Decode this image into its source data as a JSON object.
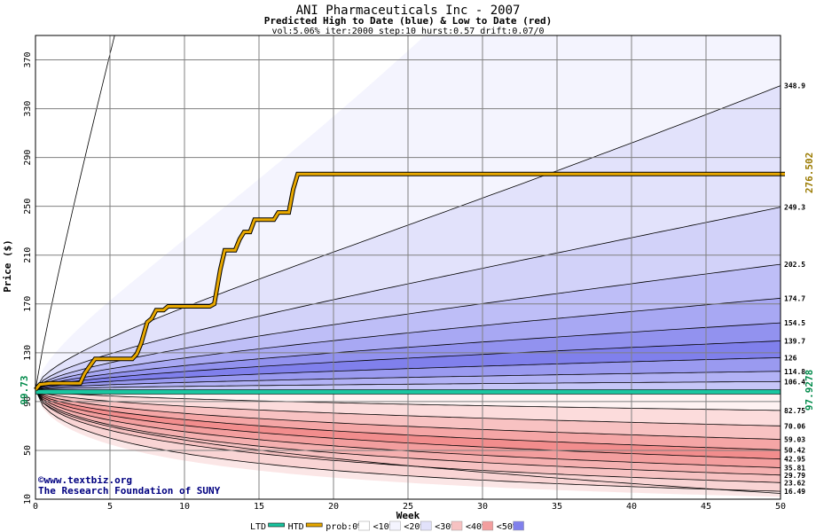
{
  "chart_data": {
    "type": "area",
    "title": "ANI Pharmaceuticals Inc - 2007",
    "subtitle": "Predicted High to Date (blue) &  Low to Date (red)",
    "params": "vol:5.06% iter:2000 step:10 hurst:0.57 drift:0.07/0",
    "xlabel": "Week",
    "ylabel": "Price ($)",
    "xlim": [
      0,
      50
    ],
    "ylim": [
      10,
      390
    ],
    "x_ticks": [
      0,
      5,
      10,
      15,
      20,
      25,
      30,
      35,
      40,
      45,
      50
    ],
    "y_ticks": [
      10,
      50,
      90,
      130,
      170,
      210,
      250,
      290,
      330,
      370
    ],
    "grid": true,
    "start_price_label": "99.73",
    "current_price_label": "97.9278",
    "htd_label": "276.502",
    "ltd_value": 97.9278,
    "htd_path": [
      [
        0,
        99.7
      ],
      [
        0.3,
        104
      ],
      [
        1,
        105
      ],
      [
        3,
        105
      ],
      [
        3.3,
        113
      ],
      [
        3.7,
        120
      ],
      [
        4,
        125
      ],
      [
        6.5,
        125
      ],
      [
        6.8,
        129
      ],
      [
        7.1,
        138
      ],
      [
        7.5,
        155
      ],
      [
        7.8,
        158
      ],
      [
        8.1,
        165
      ],
      [
        8.6,
        165
      ],
      [
        8.9,
        168
      ],
      [
        11.7,
        168
      ],
      [
        12.0,
        170
      ],
      [
        12.4,
        198
      ],
      [
        12.7,
        214
      ],
      [
        13.4,
        214
      ],
      [
        13.7,
        223
      ],
      [
        14.0,
        229
      ],
      [
        14.4,
        229
      ],
      [
        14.7,
        239
      ],
      [
        16.0,
        239
      ],
      [
        16.3,
        245
      ],
      [
        17.0,
        245
      ],
      [
        17.3,
        264
      ],
      [
        17.6,
        276.5
      ],
      [
        50.3,
        276.5
      ]
    ],
    "upper_quantiles": [
      {
        "label": "106.4",
        "end": 106.4
      },
      {
        "label": "114.8",
        "end": 114.8
      },
      {
        "label": "126",
        "end": 126
      },
      {
        "label": "139.7",
        "end": 139.7
      },
      {
        "label": "154.5",
        "end": 154.5
      },
      {
        "label": "174.7",
        "end": 174.7
      },
      {
        "label": "202.5",
        "end": 202.5
      },
      {
        "label": "249.3",
        "end": 249.3
      },
      {
        "label": "348.9",
        "end": 348.9
      }
    ],
    "lower_quantiles": [
      {
        "label": "82.75",
        "end": 82.75
      },
      {
        "label": "70.06",
        "end": 70.06
      },
      {
        "label": "59.03",
        "end": 59.03
      },
      {
        "label": "50.42",
        "end": 50.42
      },
      {
        "label": "42.95",
        "end": 42.95
      },
      {
        "label": "35.81",
        "end": 35.81
      },
      {
        "label": "29.79",
        "end": 29.79
      },
      {
        "label": "23.62",
        "end": 23.62
      },
      {
        "label": "16.49",
        "end": 16.49
      }
    ],
    "upper_fills": [
      "#f4f4fe",
      "#e2e2fb",
      "#d2d2f9",
      "#bebef7",
      "#a8a8f3",
      "#9292ef",
      "#8080ec",
      "#9a9af0",
      "#b2b2f5",
      "#c6c6f8"
    ],
    "lower_fills": [
      "#fbe6e6",
      "#f9d4d4",
      "#f7c2c2",
      "#f5b0b0",
      "#f39e9e",
      "#f28d8d",
      "#f5a6a6",
      "#f8c2c2",
      "#fcdcdc",
      "#fef2f2"
    ],
    "ltd_color": "#19c6a0",
    "htd_color": "#e8a800",
    "legend": [
      {
        "label": "LTD",
        "swatch": "line",
        "color": "#19c6a0"
      },
      {
        "label": "HTD",
        "swatch": "line",
        "color": "#e8a800"
      },
      {
        "label": "prob:0%",
        "swatch": "fill",
        "color": "#ffffff"
      },
      {
        "label": "<10%",
        "swatch": "fill",
        "color": "#f4f4fe"
      },
      {
        "label": "<20%",
        "swatch": "fill",
        "color": "#e2e2fb"
      },
      {
        "label": "<30%",
        "swatch": "fill",
        "color": "#f7c2c2"
      },
      {
        "label": "<40%",
        "swatch": "fill",
        "color": "#f39e9e"
      },
      {
        "label": "<50%",
        "swatch": "fill",
        "color": "#8080ec"
      }
    ]
  },
  "watermark": {
    "line1": "©www.textbiz.org",
    "line2": "The Research Foundation of SUNY"
  }
}
